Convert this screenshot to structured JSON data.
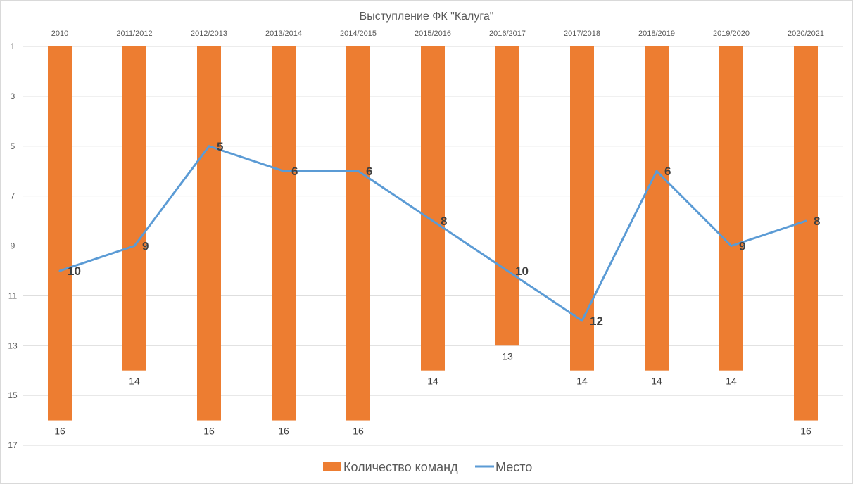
{
  "chart_data": {
    "type": "bar+line",
    "title": "Выступление ФК \"Калуга\"",
    "categories": [
      "2010",
      "2011/2012",
      "2012/2013",
      "2013/2014",
      "2014/2015",
      "2015/2016",
      "2016/2017",
      "2017/2018",
      "2018/2019",
      "2019/2020",
      "2020/2021"
    ],
    "series": [
      {
        "name": "Количество команд",
        "type": "bar",
        "color": "#ED7D31",
        "values": [
          16,
          14,
          16,
          16,
          16,
          14,
          13,
          14,
          14,
          14,
          16
        ]
      },
      {
        "name": "Место",
        "type": "line",
        "color": "#5B9BD5",
        "values": [
          10,
          9,
          5,
          6,
          6,
          8,
          10,
          12,
          6,
          9,
          8
        ]
      }
    ],
    "yaxis": {
      "reversed": true,
      "ylim": [
        1,
        17
      ],
      "ticks": [
        1,
        3,
        5,
        7,
        9,
        11,
        13,
        15,
        17
      ]
    },
    "xaxis_position": "top",
    "grid": true,
    "legend": "bottom"
  }
}
